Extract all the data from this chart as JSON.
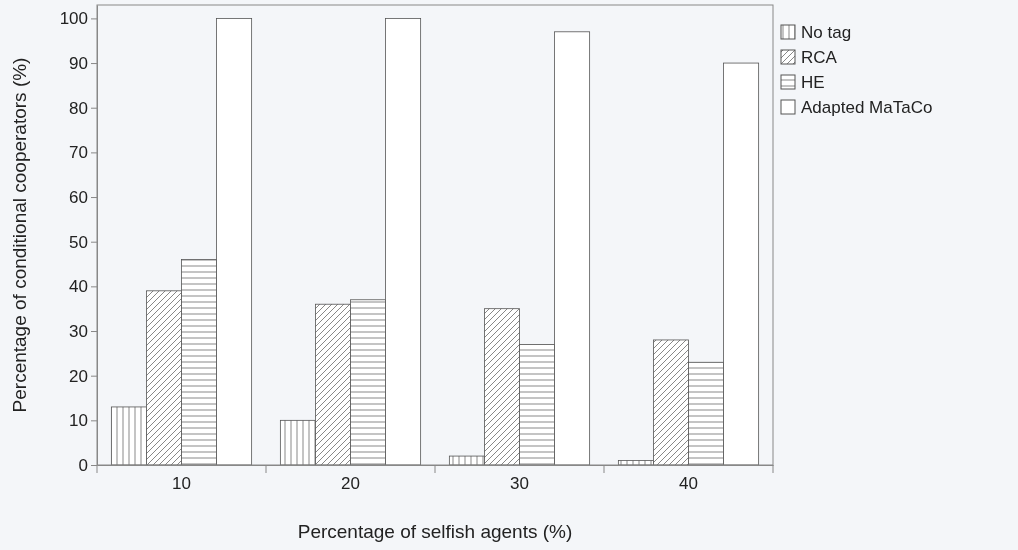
{
  "chart_data": {
    "type": "bar",
    "xlabel": "Percentage of selfish agents (%)",
    "ylabel": "Percentage of conditional cooperators (%)",
    "categories": [
      "10",
      "20",
      "30",
      "40"
    ],
    "series": [
      {
        "name": "No tag",
        "color": "#555555",
        "values": [
          13,
          10,
          2,
          1
        ]
      },
      {
        "name": "RCA",
        "color": "#555555",
        "values": [
          39,
          36,
          35,
          28
        ]
      },
      {
        "name": "HE",
        "color": "#555555",
        "values": [
          46,
          37,
          27,
          23
        ]
      },
      {
        "name": "Adapted MaTaCo",
        "color": "#555555",
        "values": [
          100,
          100,
          97,
          90
        ]
      }
    ],
    "ylim": [
      0,
      103
    ],
    "yticks": [
      0,
      10,
      20,
      30,
      40,
      50,
      60,
      70,
      80,
      90,
      100
    ],
    "legend": "top right",
    "grid": false
  }
}
